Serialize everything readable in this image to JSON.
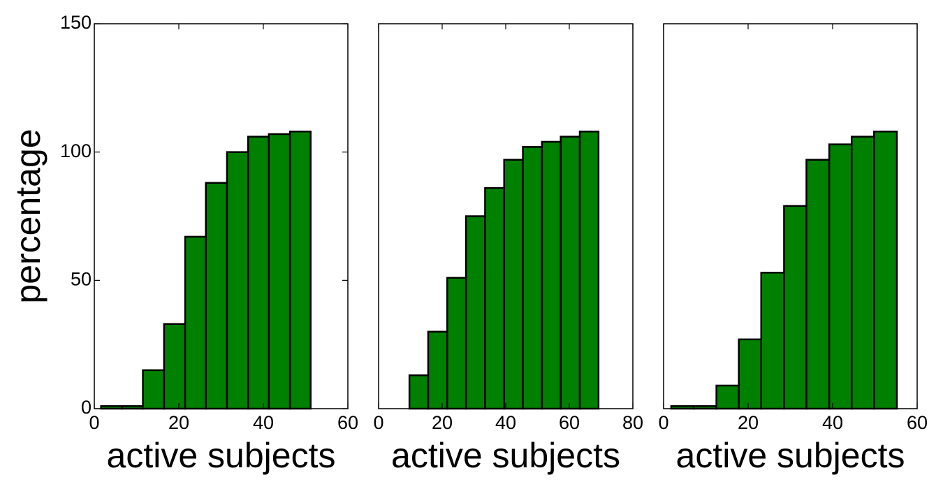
{
  "chart_data": [
    {
      "type": "histogram",
      "color": "#008000",
      "bins": [
        1.6,
        6.6,
        11.5,
        16.5,
        21.5,
        26.4,
        31.4,
        36.4,
        41.3,
        46.3,
        51.2
      ],
      "counts": [
        1,
        1,
        15,
        33,
        67,
        88,
        100,
        106,
        107,
        108
      ],
      "xlim": [
        0,
        60
      ],
      "xticks": [
        0,
        20,
        40,
        60
      ],
      "ylim": [
        0,
        150
      ],
      "yticks": [
        0,
        50,
        100,
        150
      ],
      "xlabel": "active subjects",
      "ylabel": "percentage"
    },
    {
      "type": "histogram",
      "color": "#008000",
      "bins": [
        9.7,
        15.6,
        21.6,
        27.5,
        33.5,
        39.5,
        45.4,
        51.4,
        57.3,
        63.3,
        69.2
      ],
      "counts": [
        13,
        30,
        51,
        75,
        86,
        97,
        102,
        104,
        106,
        108
      ],
      "xlim": [
        0,
        80
      ],
      "xticks": [
        0,
        20,
        40,
        60,
        80
      ],
      "ylim": [
        0,
        150
      ],
      "xlabel": "active subjects"
    },
    {
      "type": "histogram",
      "color": "#008000",
      "bins": [
        1.8,
        7.1,
        12.5,
        17.8,
        23.1,
        28.5,
        33.8,
        39.2,
        44.5,
        49.8,
        55.2
      ],
      "counts": [
        1,
        1,
        9,
        27,
        53,
        79,
        97,
        103,
        106,
        108
      ],
      "xlim": [
        0,
        60
      ],
      "xticks": [
        0,
        20,
        40,
        60
      ],
      "ylim": [
        0,
        150
      ],
      "xlabel": "active subjects"
    }
  ]
}
